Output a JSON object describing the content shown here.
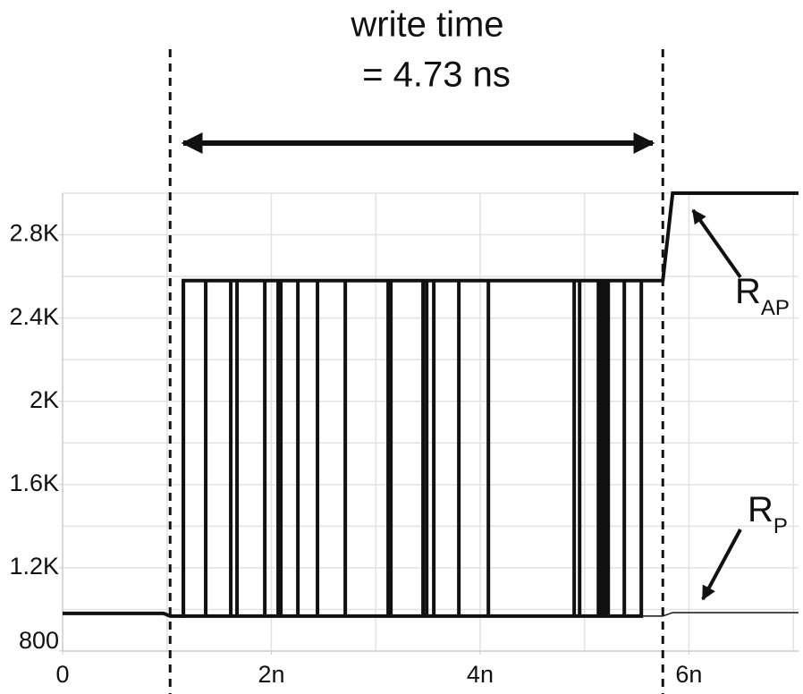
{
  "chart_data": {
    "type": "line",
    "title": "write time",
    "subtitle": "= 4.73 ns",
    "xlim": [
      0,
      7.05
    ],
    "ylim": [
      800,
      3000
    ],
    "xticks": [
      {
        "value": 0,
        "label": "0"
      },
      {
        "value": 2,
        "label": "2n"
      },
      {
        "value": 4,
        "label": "4n"
      },
      {
        "value": 6,
        "label": "6n"
      }
    ],
    "yticks": [
      {
        "value": 800,
        "label": "800"
      },
      {
        "value": 1200,
        "label": "1.2K"
      },
      {
        "value": 1600,
        "label": "1.6K"
      },
      {
        "value": 2000,
        "label": "2K"
      },
      {
        "value": 2400,
        "label": "2.4K"
      },
      {
        "value": 2800,
        "label": "2.8K"
      }
    ],
    "xgrid": [
      1,
      2,
      3,
      4,
      5,
      6,
      7
    ],
    "ygrid": [
      1000,
      1200,
      1400,
      1600,
      1800,
      2000,
      2200,
      2400,
      2600,
      2800,
      3000
    ],
    "grid": true,
    "vlines": [
      1.03,
      5.75
    ],
    "series": [
      {
        "color": "#111111",
        "stroke_width": 4,
        "x": [
          0,
          0.968,
          1.03,
          1.157,
          1.157,
          5.75,
          5.844,
          7.05
        ],
        "values": [
          981,
          981,
          968,
          968,
          2580,
          2580,
          3000,
          3000
        ]
      },
      {
        "color": "#111111",
        "stroke_width": 4,
        "x": [
          1.157,
          1.157,
          1.157,
          1.371,
          1.371,
          1.371,
          1.611,
          1.611,
          1.611,
          1.671,
          1.671,
          1.671,
          1.937,
          1.937,
          1.937,
          2.065,
          2.065,
          2.065,
          2.091,
          2.091,
          2.091,
          2.254,
          2.254,
          2.254,
          2.442,
          2.442,
          2.442,
          2.708,
          2.708,
          2.708,
          3.119,
          3.119,
          3.119,
          3.145,
          3.145,
          3.145,
          3.453,
          3.453,
          3.453,
          3.488,
          3.488,
          3.488,
          3.556,
          3.556,
          3.556,
          3.796,
          3.796,
          3.796,
          4.079,
          4.079,
          4.079,
          4.901,
          4.901,
          4.901,
          4.953,
          4.953,
          4.953,
          5.133,
          5.133,
          5.133,
          5.167,
          5.167,
          5.167,
          5.201,
          5.201,
          5.201,
          5.227,
          5.227,
          5.227,
          5.381,
          5.381,
          5.381,
          5.544,
          5.544,
          5.544
        ],
        "values": [
          968,
          2580,
          968,
          968,
          2580,
          968,
          968,
          2580,
          968,
          968,
          2580,
          968,
          968,
          2580,
          968,
          968,
          2580,
          968,
          968,
          2580,
          968,
          968,
          2580,
          968,
          968,
          2580,
          968,
          968,
          2580,
          968,
          968,
          2580,
          968,
          968,
          2580,
          968,
          968,
          2580,
          968,
          968,
          2580,
          968,
          968,
          2580,
          968,
          968,
          2580,
          968,
          968,
          2580,
          968,
          968,
          2580,
          968,
          968,
          2580,
          968,
          968,
          2580,
          968,
          968,
          2580,
          968,
          968,
          2580,
          968,
          968,
          2580,
          968,
          968,
          2580,
          968,
          968,
          2580,
          968
        ]
      },
      {
        "color": "#111111",
        "stroke_width": 1.5,
        "x": [
          5.544,
          5.75,
          5.844,
          7.05
        ],
        "values": [
          968,
          968,
          985,
          985
        ]
      }
    ],
    "annotations": [
      {
        "text": "R",
        "sub": "AP"
      },
      {
        "text": "R",
        "sub": "P"
      }
    ]
  }
}
